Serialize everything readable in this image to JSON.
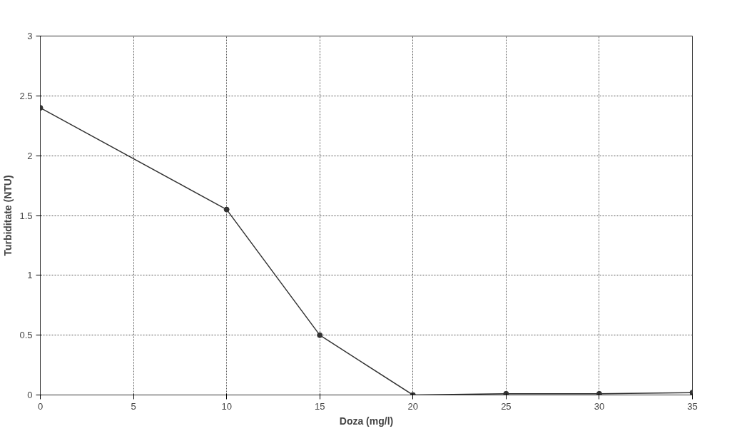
{
  "chart_data": {
    "type": "line",
    "xlabel": "Doza (mg/l)",
    "ylabel": "Turbiditate (NTU)",
    "x": [
      0,
      10,
      15,
      20,
      25,
      30,
      35
    ],
    "series": [
      {
        "color": "#333333",
        "values": [
          2.4,
          1.55,
          0.5,
          0,
          0.01,
          0.01,
          0.02
        ]
      }
    ],
    "xlim": [
      0,
      35
    ],
    "xticks": [
      0,
      5,
      10,
      15,
      20,
      25,
      30,
      35
    ],
    "ylim": [
      0,
      3
    ],
    "yticks": [
      0,
      0.5,
      1,
      1.5,
      2,
      2.5,
      3
    ],
    "grid": true,
    "marker": "circle",
    "line_style": "solid"
  }
}
